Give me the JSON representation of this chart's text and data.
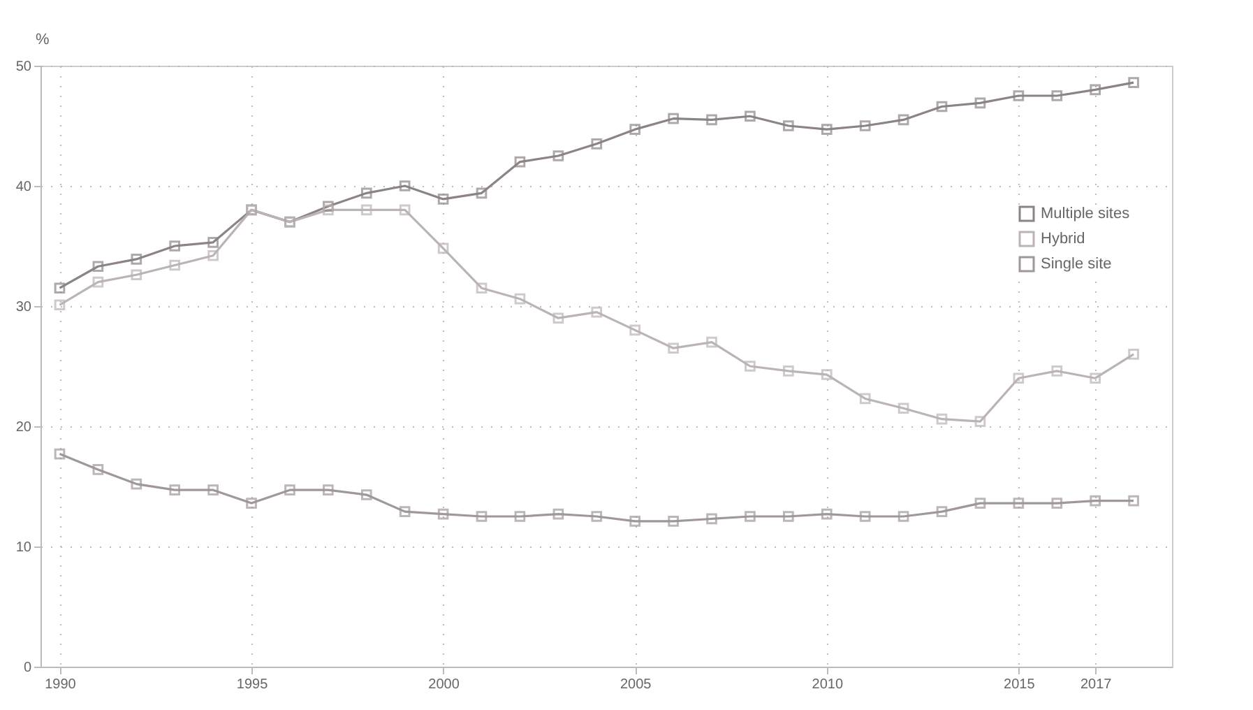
{
  "chart_data": {
    "type": "line",
    "ylabel": "%",
    "x": [
      1990,
      1991,
      1992,
      1993,
      1994,
      1995,
      1996,
      1997,
      1998,
      1999,
      2000,
      2001,
      2002,
      2003,
      2004,
      2005,
      2006,
      2007,
      2008,
      2009,
      2010,
      2011,
      2012,
      2013,
      2014,
      2015,
      2016,
      2017,
      2018
    ],
    "series": [
      {
        "name": "Multiple sites",
        "color": "#8c8484",
        "values": [
          31.5,
          33.3,
          33.9,
          35,
          35.3,
          38,
          37,
          38.3,
          39.4,
          40,
          38.9,
          39.4,
          42,
          42.5,
          43.5,
          44.7,
          45.6,
          45.5,
          45.8,
          45,
          44.7,
          45,
          45.5,
          46.6,
          46.9,
          47.5,
          47.5,
          48,
          48.6
        ]
      },
      {
        "name": "Hybrid",
        "color": "#bcb4b4",
        "values": [
          30.1,
          32,
          32.6,
          33.4,
          34.2,
          38,
          37,
          38,
          38,
          38,
          34.8,
          31.5,
          30.6,
          29,
          29.5,
          28,
          26.5,
          27,
          25,
          24.6,
          24.3,
          22.3,
          21.5,
          20.6,
          20.4,
          24,
          24.6,
          24,
          26
        ]
      },
      {
        "name": "Single site",
        "color": "#a09898",
        "values": [
          17.7,
          16.4,
          15.2,
          14.7,
          14.7,
          13.6,
          14.7,
          14.7,
          14.3,
          12.9,
          12.7,
          12.5,
          12.5,
          12.7,
          12.5,
          12.1,
          12.1,
          12.3,
          12.5,
          12.5,
          12.7,
          12.5,
          12.5,
          12.9,
          13.6,
          13.6,
          13.6,
          13.8,
          13.8
        ]
      }
    ],
    "xlim": [
      1989.5,
      2019
    ],
    "xticks": [
      1990,
      1995,
      2000,
      2005,
      2010,
      2015,
      2017
    ],
    "ylim": [
      0,
      50
    ],
    "yticks": [
      0,
      10,
      20,
      30,
      40,
      50
    ],
    "grid": true,
    "legend": "right",
    "marker": "square",
    "line_style": "solid"
  }
}
